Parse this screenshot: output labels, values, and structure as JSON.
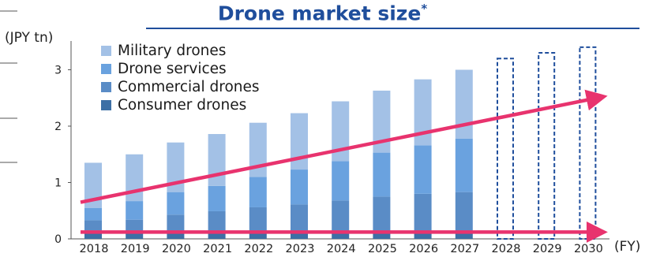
{
  "chart_data": {
    "type": "bar",
    "stacked": true,
    "title": "Drone market size",
    "title_mark": "*",
    "ylabel": "(JPY tn)",
    "xlabel": "(FY)",
    "ylim": [
      0,
      3.2
    ],
    "yticks": [
      "0",
      "1",
      "2",
      "3"
    ],
    "categories": [
      "2018",
      "2019",
      "2020",
      "2021",
      "2022",
      "2023",
      "2024",
      "2025",
      "2026",
      "2027",
      "2028",
      "2029",
      "2030"
    ],
    "series": [
      {
        "name": "Consumer drones",
        "color": "#3d6fa5",
        "values": [
          0.15,
          0.14,
          0.13,
          0.12,
          0.12,
          0.11,
          0.1,
          0.1,
          0.1,
          0.1,
          null,
          null,
          null
        ]
      },
      {
        "name": "Commercial drones",
        "color": "#5a8cc6",
        "values": [
          0.18,
          0.2,
          0.3,
          0.37,
          0.44,
          0.5,
          0.58,
          0.65,
          0.7,
          0.73,
          null,
          null,
          null
        ]
      },
      {
        "name": "Drone services",
        "color": "#6aa2df",
        "values": [
          0.22,
          0.33,
          0.4,
          0.45,
          0.54,
          0.62,
          0.7,
          0.78,
          0.86,
          0.95,
          null,
          null,
          null
        ]
      },
      {
        "name": "Military drones",
        "color": "#a3c1e6",
        "values": [
          0.8,
          0.83,
          0.88,
          0.92,
          0.96,
          1.0,
          1.06,
          1.1,
          1.17,
          1.22,
          null,
          null,
          null
        ]
      }
    ],
    "legend_order": [
      "Military drones",
      "Drone services",
      "Commercial drones",
      "Consumer drones"
    ],
    "legend_position": "top-left",
    "forecast_placeholders": {
      "categories": [
        "2028",
        "2029",
        "2030"
      ],
      "heights": [
        3.2,
        3.3,
        3.4
      ],
      "style": "dashed-outline",
      "color": "#1f4e9c"
    },
    "trend_arrows": {
      "color": "#e8336e",
      "upper": {
        "from": [
          "2018",
          0.65
        ],
        "to": [
          "2030",
          2.5
        ]
      },
      "lower": {
        "from": [
          "2018",
          0.12
        ],
        "to": [
          "2030",
          0.12
        ]
      }
    },
    "grid": false
  }
}
